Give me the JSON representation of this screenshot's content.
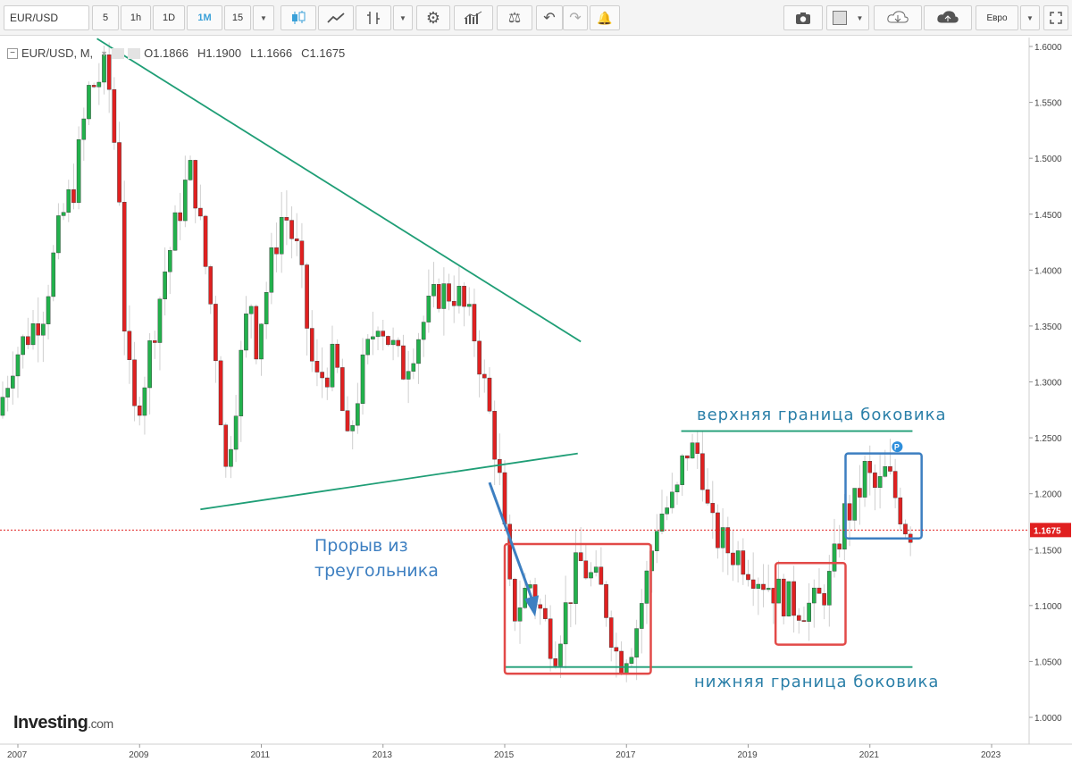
{
  "toolbar": {
    "symbol": "EUR/USD",
    "intervals": [
      "5",
      "1h",
      "1D",
      "1M",
      "15"
    ],
    "active_interval": "1M",
    "currency": "Евро",
    "icons": [
      "candles-icon",
      "line-chart-icon",
      "bar-chart-icon",
      "dropdown-icon",
      "gear-icon",
      "indicators-icon",
      "balance-icon",
      "undo-icon",
      "redo-icon",
      "add-alert-icon",
      "camera-icon",
      "color-box-icon",
      "cloud-download-icon",
      "cloud-upload-icon"
    ]
  },
  "legend": {
    "symbol": "EUR/USD, M,",
    "open": "O1.1866",
    "high": "H1.1900",
    "low": "L1.1666",
    "close": "C1.1675"
  },
  "colors": {
    "up": "#22b14c",
    "down": "#e02020",
    "trend": "#1f9e76",
    "arrow": "#3d7fc1",
    "red_box": "#e24a48",
    "blue_box": "#3d7fc1",
    "price_line": "#e02020"
  },
  "annotations": {
    "upper": "верхняя граница боковика",
    "lower": "нижняя граница боковика",
    "breakout_line1": "Прорыв из",
    "breakout_line2": "треугольника",
    "marker": "P"
  },
  "watermark": {
    "brand": "Investing",
    "suffix": ".com"
  },
  "chart_data": {
    "type": "candlestick",
    "title": "EUR/USD",
    "timeframe": "M",
    "last_price": "1.1675",
    "x_ticks": [
      "2007",
      "2009",
      "2011",
      "2013",
      "2015",
      "2017",
      "2019",
      "2021",
      "2023"
    ],
    "y_ticks": [
      "1.6000",
      "1.5500",
      "1.5000",
      "1.4500",
      "1.4000",
      "1.3500",
      "1.3000",
      "1.2500",
      "1.2000",
      "1.1500",
      "1.1000",
      "1.0500",
      "1.0000"
    ],
    "ylim": [
      0.975,
      1.61
    ],
    "xlim": [
      2006.8,
      2023.9
    ],
    "anchors": [
      [
        2006.75,
        1.27
      ],
      [
        2007.0,
        1.32
      ],
      [
        2007.5,
        1.365
      ],
      [
        2007.8,
        1.445
      ],
      [
        2008.0,
        1.475
      ],
      [
        2008.25,
        1.56
      ],
      [
        2008.55,
        1.58
      ],
      [
        2008.75,
        1.47
      ],
      [
        2008.85,
        1.33
      ],
      [
        2009.0,
        1.27
      ],
      [
        2009.15,
        1.3
      ],
      [
        2009.5,
        1.4
      ],
      [
        2009.9,
        1.49
      ],
      [
        2010.0,
        1.47
      ],
      [
        2010.3,
        1.35
      ],
      [
        2010.5,
        1.22
      ],
      [
        2010.9,
        1.38
      ],
      [
        2011.0,
        1.335
      ],
      [
        2011.3,
        1.42
      ],
      [
        2011.45,
        1.455
      ],
      [
        2011.7,
        1.41
      ],
      [
        2011.9,
        1.32
      ],
      [
        2012.0,
        1.3
      ],
      [
        2012.3,
        1.32
      ],
      [
        2012.5,
        1.24
      ],
      [
        2012.7,
        1.3
      ],
      [
        2013.0,
        1.36
      ],
      [
        2013.4,
        1.31
      ],
      [
        2013.8,
        1.36
      ],
      [
        2014.0,
        1.38
      ],
      [
        2014.3,
        1.38
      ],
      [
        2014.6,
        1.34
      ],
      [
        2014.9,
        1.25
      ],
      [
        2015.0,
        1.21
      ],
      [
        2015.2,
        1.09
      ],
      [
        2015.5,
        1.12
      ],
      [
        2015.9,
        1.06
      ],
      [
        2016.3,
        1.14
      ],
      [
        2016.7,
        1.11
      ],
      [
        2016.95,
        1.05
      ],
      [
        2017.2,
        1.07
      ],
      [
        2017.4,
        1.12
      ],
      [
        2017.6,
        1.18
      ],
      [
        2017.9,
        1.195
      ],
      [
        2018.05,
        1.24
      ],
      [
        2018.3,
        1.235
      ],
      [
        2018.45,
        1.17
      ],
      [
        2018.75,
        1.15
      ],
      [
        2018.95,
        1.145
      ],
      [
        2019.3,
        1.125
      ],
      [
        2019.6,
        1.11
      ],
      [
        2019.85,
        1.1
      ],
      [
        2020.2,
        1.1
      ],
      [
        2020.45,
        1.125
      ],
      [
        2020.65,
        1.18
      ],
      [
        2020.85,
        1.19
      ],
      [
        2021.0,
        1.22
      ],
      [
        2021.2,
        1.2
      ],
      [
        2021.35,
        1.22
      ],
      [
        2021.55,
        1.19
      ],
      [
        2021.7,
        1.168
      ]
    ],
    "trendlines": [
      {
        "name": "upper-triangle",
        "p1": [
          2008.3,
          1.607
        ],
        "p2": [
          2016.25,
          1.336
        ]
      },
      {
        "name": "lower-triangle",
        "p1": [
          2010.0,
          1.186
        ],
        "p2": [
          2016.2,
          1.236
        ]
      },
      {
        "name": "range-top",
        "p1": [
          2017.9,
          1.256
        ],
        "p2": [
          2021.7,
          1.256
        ]
      },
      {
        "name": "range-bottom",
        "p1": [
          2015.0,
          1.045
        ],
        "p2": [
          2021.7,
          1.045
        ]
      }
    ],
    "boxes": [
      {
        "name": "red-box-1",
        "x": [
          2015.0,
          2017.4
        ],
        "y": [
          1.039,
          1.155
        ],
        "color": "red"
      },
      {
        "name": "red-box-2",
        "x": [
          2019.45,
          2020.6
        ],
        "y": [
          1.065,
          1.138
        ],
        "color": "red"
      },
      {
        "name": "blue-box",
        "x": [
          2020.6,
          2021.85
        ],
        "y": [
          1.16,
          1.236
        ],
        "color": "blue"
      }
    ]
  }
}
